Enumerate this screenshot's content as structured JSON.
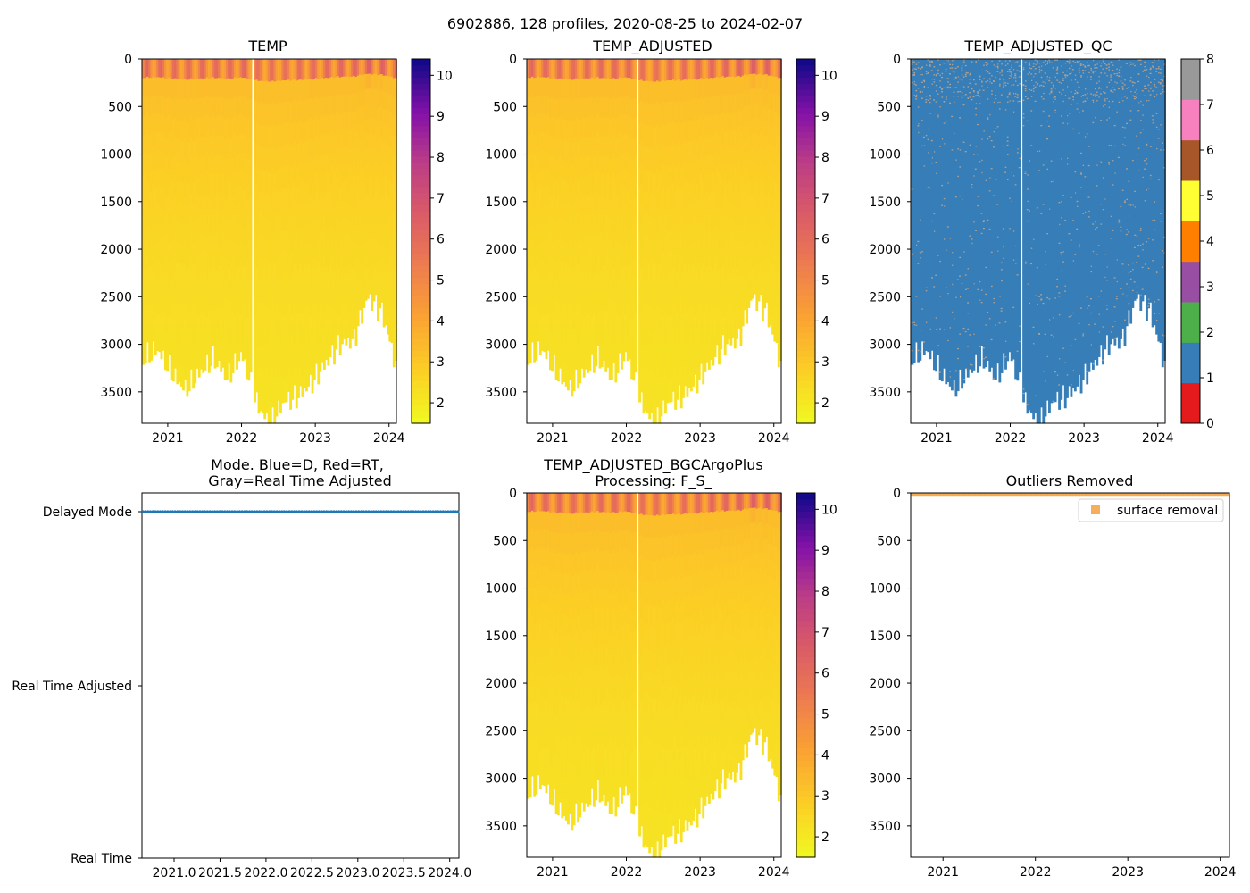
{
  "suptitle": "6902886, 128 profiles, 2020-08-25 to 2024-02-07",
  "colors": {
    "mode_marker": "#1f77b4",
    "outlier": "#f5a040",
    "qc_good": "#377eb8",
    "qc_speckle": "#b0a090"
  },
  "profile_count": 128,
  "gap_year": 2022.15,
  "bottom_profile": [
    3150,
    3050,
    3300,
    3480,
    3300,
    3150,
    3350,
    3100,
    3600,
    3850,
    3600,
    3550,
    3400,
    3200,
    3000,
    2950,
    2500,
    2650,
    3200
  ],
  "chart_data": [
    {
      "id": "temp",
      "type": "heatmap",
      "title": "TEMP",
      "x_ticks": [
        "2021",
        "2022",
        "2023",
        "2024"
      ],
      "x_tick_values": [
        2021,
        2022,
        2023,
        2024
      ],
      "xlim": [
        2020.65,
        2024.1
      ],
      "y_ticks": [
        "0",
        "500",
        "1000",
        "1500",
        "2000",
        "2500",
        "3000",
        "3500"
      ],
      "y_tick_values": [
        0,
        500,
        1000,
        1500,
        2000,
        2500,
        3000,
        3500
      ],
      "ylim": [
        3830,
        0
      ],
      "colorbar": {
        "cmap": "plasma_r",
        "range": [
          1.5,
          10.4
        ],
        "ticks": [
          "2",
          "3",
          "4",
          "5",
          "6",
          "7",
          "8",
          "9",
          "10"
        ],
        "tick_values": [
          2,
          3,
          4,
          5,
          6,
          7,
          8,
          9,
          10
        ]
      }
    },
    {
      "id": "temp_adj",
      "type": "heatmap",
      "title": "TEMP_ADJUSTED",
      "x_ticks": [
        "2021",
        "2022",
        "2023",
        "2024"
      ],
      "x_tick_values": [
        2021,
        2022,
        2023,
        2024
      ],
      "xlim": [
        2020.65,
        2024.1
      ],
      "y_ticks": [
        "0",
        "500",
        "1000",
        "1500",
        "2000",
        "2500",
        "3000",
        "3500"
      ],
      "y_tick_values": [
        0,
        500,
        1000,
        1500,
        2000,
        2500,
        3000,
        3500
      ],
      "ylim": [
        3830,
        0
      ],
      "colorbar": {
        "cmap": "plasma_r",
        "range": [
          1.5,
          10.4
        ],
        "ticks": [
          "2",
          "3",
          "4",
          "5",
          "6",
          "7",
          "8",
          "9",
          "10"
        ],
        "tick_values": [
          2,
          3,
          4,
          5,
          6,
          7,
          8,
          9,
          10
        ]
      }
    },
    {
      "id": "qc",
      "type": "heatmap",
      "title": "TEMP_ADJUSTED_QC",
      "x_ticks": [
        "2021",
        "2022",
        "2023",
        "2024"
      ],
      "x_tick_values": [
        2021,
        2022,
        2023,
        2024
      ],
      "xlim": [
        2020.65,
        2024.1
      ],
      "y_ticks": [
        "0",
        "500",
        "1000",
        "1500",
        "2000",
        "2500",
        "3000",
        "3500"
      ],
      "y_tick_values": [
        0,
        500,
        1000,
        1500,
        2000,
        2500,
        3000,
        3500
      ],
      "ylim": [
        3830,
        0
      ],
      "colorbar": {
        "cmap": "categorical",
        "range": [
          0,
          8
        ],
        "ticks": [
          "0",
          "1",
          "2",
          "3",
          "4",
          "5",
          "6",
          "7",
          "8"
        ],
        "tick_values": [
          0,
          1,
          2,
          3,
          4,
          5,
          6,
          7,
          8
        ],
        "classes": [
          "#e41a1c",
          "#377eb8",
          "#4daf4a",
          "#984ea3",
          "#ff7f00",
          "#ffff33",
          "#a65628",
          "#f781bf",
          "#999999"
        ]
      }
    },
    {
      "id": "mode",
      "type": "scatter",
      "title_line1": "Mode. Blue=D, Red=RT,",
      "title_line2": "Gray=Real Time Adjusted",
      "x_ticks": [
        "2021.0",
        "2021.5",
        "2022.0",
        "2022.5",
        "2023.0",
        "2023.5",
        "2024.0"
      ],
      "x_tick_values": [
        2021.0,
        2021.5,
        2022.0,
        2022.5,
        2023.0,
        2023.5,
        2024.0
      ],
      "xlim": [
        2020.65,
        2024.1
      ],
      "categories": [
        "Delayed Mode",
        "Real Time Adjusted",
        "Real Time"
      ],
      "y_values_all": "Delayed Mode"
    },
    {
      "id": "bgc",
      "type": "heatmap",
      "title_line1": "TEMP_ADJUSTED_BGCArgoPlus",
      "title_line2": "Processing: F_S_",
      "x_ticks": [
        "2021",
        "2022",
        "2023",
        "2024"
      ],
      "x_tick_values": [
        2021,
        2022,
        2023,
        2024
      ],
      "xlim": [
        2020.65,
        2024.1
      ],
      "y_ticks": [
        "0",
        "500",
        "1000",
        "1500",
        "2000",
        "2500",
        "3000",
        "3500"
      ],
      "y_tick_values": [
        0,
        500,
        1000,
        1500,
        2000,
        2500,
        3000,
        3500
      ],
      "ylim": [
        3830,
        0
      ],
      "colorbar": {
        "cmap": "plasma_r",
        "range": [
          1.5,
          10.4
        ],
        "ticks": [
          "2",
          "3",
          "4",
          "5",
          "6",
          "7",
          "8",
          "9",
          "10"
        ],
        "tick_values": [
          2,
          3,
          4,
          5,
          6,
          7,
          8,
          9,
          10
        ]
      }
    },
    {
      "id": "outliers",
      "type": "scatter",
      "title": "Outliers Removed",
      "x_ticks": [
        "2021",
        "2022",
        "2023",
        "2024"
      ],
      "x_tick_values": [
        2021,
        2022,
        2023,
        2024
      ],
      "xlim": [
        2020.65,
        2024.1
      ],
      "y_ticks": [
        "0",
        "500",
        "1000",
        "1500",
        "2000",
        "2500",
        "3000",
        "3500"
      ],
      "y_tick_values": [
        0,
        500,
        1000,
        1500,
        2000,
        2500,
        3000,
        3500
      ],
      "ylim": [
        3830,
        0
      ],
      "legend_label": "surface removal",
      "legend_loc": "upper right",
      "outlier_depth_range": [
        0,
        30
      ]
    }
  ]
}
